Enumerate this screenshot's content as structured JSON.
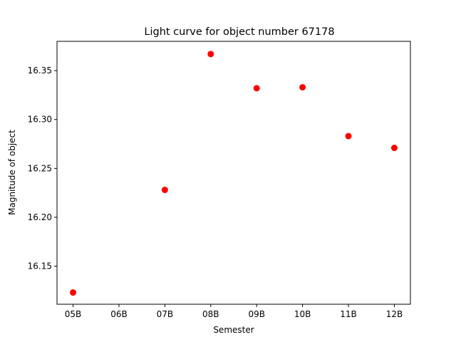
{
  "chart_data": {
    "type": "scatter",
    "title": "Light curve for object number 67178",
    "xlabel": "Semester",
    "ylabel": "Magnitude of object",
    "categories": [
      "05B",
      "06B",
      "07B",
      "08B",
      "09B",
      "10B",
      "11B",
      "12B"
    ],
    "yticks": [
      16.15,
      16.2,
      16.25,
      16.3,
      16.35
    ],
    "ytick_labels": [
      "16.15",
      "16.20",
      "16.25",
      "16.30",
      "16.35"
    ],
    "ylim": [
      16.111,
      16.38
    ],
    "grid": false,
    "marker_color": "#ff0000",
    "points": [
      {
        "x": "05B",
        "y": 16.123
      },
      {
        "x": "07B",
        "y": 16.228
      },
      {
        "x": "08B",
        "y": 16.367
      },
      {
        "x": "09B",
        "y": 16.332
      },
      {
        "x": "10B",
        "y": 16.333
      },
      {
        "x": "11B",
        "y": 16.283
      },
      {
        "x": "12B",
        "y": 16.271
      }
    ]
  }
}
